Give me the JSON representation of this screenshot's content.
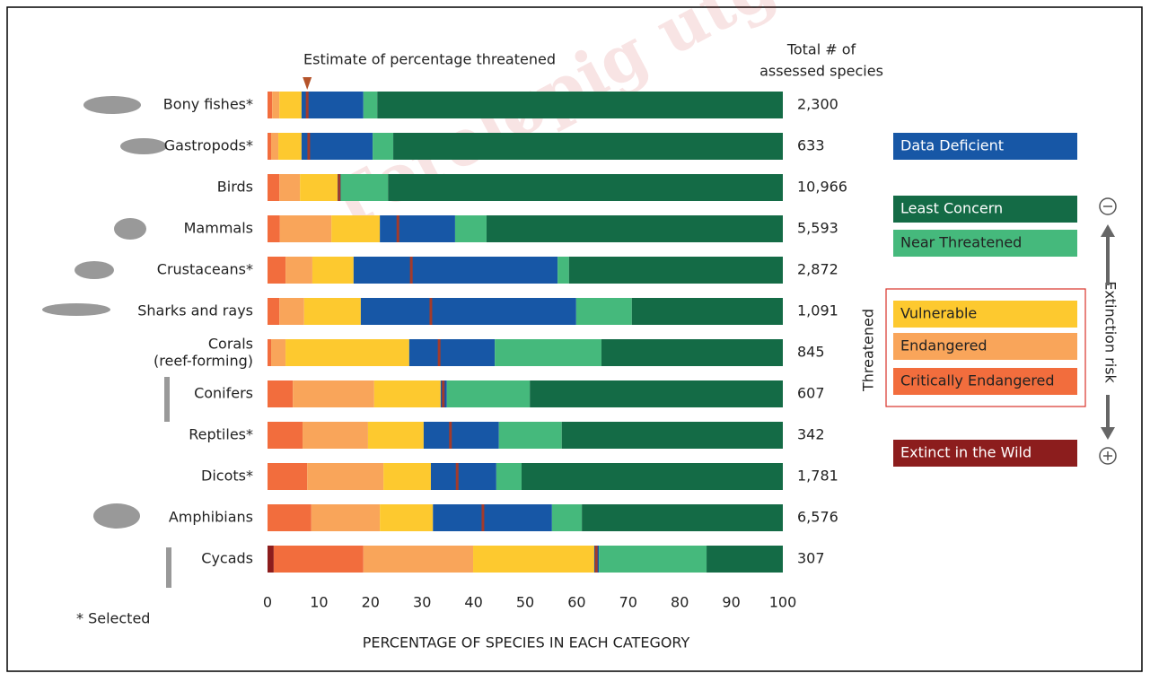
{
  "chart_data": {
    "type": "stacked-bar-horizontal",
    "watermark": "Foreløpig utg",
    "categories": [
      "Bony fishes*",
      "Gastropods*",
      "Birds",
      "Mammals",
      "Crustaceans*",
      "Sharks and rays",
      "Corals\n(reef-forming)",
      "Conifers",
      "Reptiles*",
      "Dicots*",
      "Amphibians",
      "Cycads"
    ],
    "series": [
      {
        "name": "Extinct in the Wild",
        "color": "#8c1d1d",
        "values": [
          0,
          0,
          0,
          0,
          0,
          0,
          0,
          0,
          0,
          0,
          0,
          1.2
        ]
      },
      {
        "name": "Critically Endangered",
        "color": "#f26d3d",
        "values": [
          0.9,
          0.7,
          2.3,
          2.4,
          3.5,
          2.3,
          0.7,
          4.9,
          6.8,
          7.7,
          8.5,
          17.4
        ]
      },
      {
        "name": "Endangered",
        "color": "#f9a55a",
        "values": [
          1.4,
          1.4,
          4.0,
          10.0,
          5.2,
          4.8,
          2.8,
          15.8,
          12.7,
          14.8,
          13.3,
          21.3
        ]
      },
      {
        "name": "Vulnerable",
        "color": "#fdc92f",
        "values": [
          4.3,
          4.5,
          7.3,
          9.4,
          8.0,
          11.0,
          24.0,
          12.9,
          10.8,
          9.2,
          10.3,
          23.5
        ]
      },
      {
        "name": "Data Deficient",
        "color": "#1757a6",
        "values": [
          12.0,
          13.8,
          0.6,
          14.6,
          39.6,
          41.8,
          16.6,
          1.2,
          14.6,
          12.7,
          23.1,
          0.9
        ]
      },
      {
        "name": "Near Threatened",
        "color": "#45b97c",
        "values": [
          2.7,
          4.0,
          9.2,
          6.1,
          2.2,
          10.8,
          20.7,
          16.1,
          12.2,
          4.9,
          5.8,
          20.9
        ]
      },
      {
        "name": "Least Concern",
        "color": "#146b46",
        "values": [
          78.7,
          75.6,
          76.6,
          57.5,
          41.5,
          29.3,
          35.2,
          49.1,
          42.9,
          50.7,
          39.0,
          14.8
        ]
      }
    ],
    "estimate": {
      "name": "Estimate of percentage threatened",
      "color": "#a33b2b",
      "values": [
        7.7,
        8.0,
        13.9,
        25.3,
        27.9,
        31.7,
        33.3,
        34.1,
        35.5,
        36.8,
        41.8,
        63.8
      ]
    },
    "totals": {
      "header": [
        "Total # of",
        "assessed species"
      ],
      "values": [
        2300,
        633,
        10966,
        5593,
        2872,
        1091,
        845,
        607,
        342,
        1781,
        6576,
        307
      ],
      "value_labels": [
        "2,300",
        "633",
        "10,966",
        "5,593",
        "2,872",
        "1,091",
        "845",
        "607",
        "342",
        "1,781",
        "6,576",
        "307"
      ]
    },
    "threatened_label": "Threatened",
    "risk_label": "Extinction risk",
    "footnote": "* Selected",
    "xlabel": "PERCENTAGE OF SPECIES IN EACH CATEGORY",
    "xlim": [
      0,
      100
    ],
    "xticks": [
      0,
      10,
      20,
      30,
      40,
      50,
      60,
      70,
      80,
      90,
      100
    ]
  }
}
